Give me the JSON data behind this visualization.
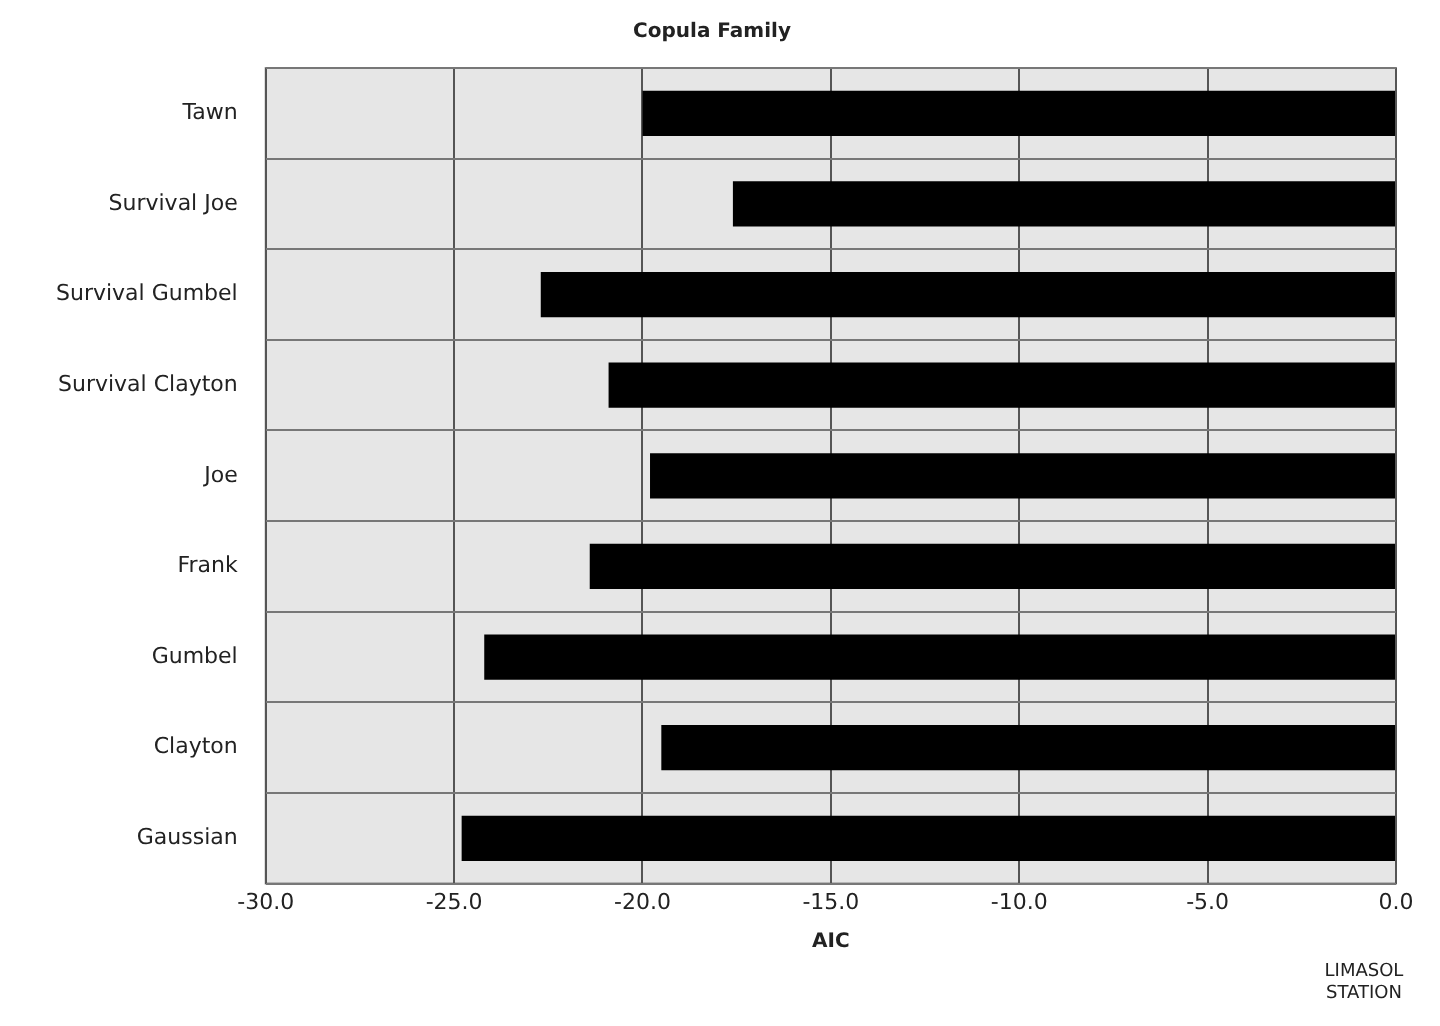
{
  "chart_data": {
    "type": "bar",
    "orientation": "horizontal",
    "title": "Copula Family",
    "xlabel": "AIC",
    "categories": [
      "Tawn",
      "Survival Joe",
      "Survival Gumbel",
      "Survival Clayton",
      "Joe",
      "Frank",
      "Gumbel",
      "Clayton",
      "Gaussian"
    ],
    "values": [
      -20.0,
      -17.6,
      -22.7,
      -20.9,
      -19.8,
      -21.4,
      -24.2,
      -19.5,
      -24.8
    ],
    "color": "#000000",
    "xlim": [
      -30,
      0
    ],
    "xticks": [
      {
        "value": -30,
        "label": "-30.0"
      },
      {
        "value": -25,
        "label": "-25.0"
      },
      {
        "value": -20,
        "label": "-20.0"
      },
      {
        "value": -15,
        "label": "-15.0"
      },
      {
        "value": -10,
        "label": "-10.0"
      },
      {
        "value": -5,
        "label": "-5.0"
      },
      {
        "value": 0,
        "label": "0.0"
      }
    ],
    "grid": true,
    "annotations": [
      "LIMASOL STATION"
    ]
  }
}
